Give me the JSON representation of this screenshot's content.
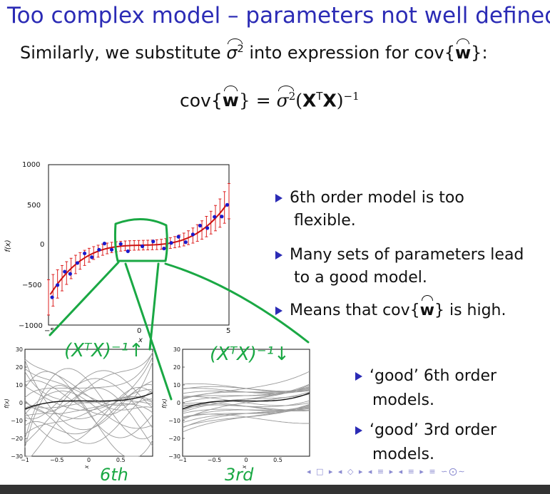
{
  "slide": {
    "title": "Too complex model – parameters not well defined",
    "subtitle_pre": "Similarly, we substitute",
    "subtitle_post": "into expression for cov{",
    "subtitle_end": "}:",
    "sigma": "σ",
    "sq": "2",
    "w": "w",
    "formula_cov": "cov{",
    "formula_close": "} =",
    "formula_X": "X",
    "formula_T": "T",
    "formula_inv": "−1",
    "bullets": [
      {
        "line1": "6th order model is too",
        "line2": "flexible."
      },
      {
        "line1": "Many sets of parameters lead",
        "line2": "to a good model."
      },
      {
        "line1": "Means that cov{",
        "line1_post": "} is high."
      }
    ],
    "sub_bullets": [
      {
        "line1": "‘good’ 6th order",
        "line2": "models."
      },
      {
        "line1": "‘good’ 3rd order",
        "line2": "models."
      }
    ]
  },
  "main_plot": {
    "ylabel": "f(x)",
    "xlabel": "x",
    "yticks": [
      "1000",
      "500",
      "0",
      "−500",
      "−1000"
    ],
    "xticks": [
      "−5",
      "0",
      "5"
    ],
    "colors": {
      "fit": "#cc1111",
      "error": "#dd2222",
      "points": "#1a1acc"
    }
  },
  "small_plots": {
    "ylabel": "f(x)",
    "xlabel": "x",
    "yticks": [
      "30",
      "20",
      "10",
      "0",
      "−10",
      "−20",
      "−30"
    ],
    "xticks": [
      "−1",
      "−0.5",
      "0",
      "0.5"
    ]
  },
  "annotations": {
    "left_label": "(XᵀX)⁻¹↑",
    "right_label": "(XᵀX)⁻¹↓",
    "left_caption": "6th",
    "right_caption": "3rd",
    "color": "#1aa844"
  },
  "navigation": {
    "symbols": "◂ □ ▸ ◂ ◇ ▸ ◂ ≡ ▸ ◂ ≡ ▸   ≡   ∽⨀∼"
  }
}
